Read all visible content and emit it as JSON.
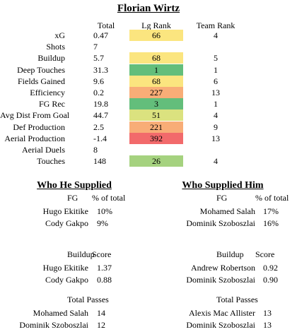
{
  "title": "Florian Wirtz",
  "headers": {
    "total": "Total",
    "lg_rank": "Lg Rank",
    "team_rank": "Team Rank"
  },
  "stats": [
    {
      "label": "xG",
      "total": "0.47",
      "lg_rank": "66",
      "team_rank": "4",
      "color": "#fbe57f"
    },
    {
      "label": "Shots",
      "total": "7",
      "lg_rank": "",
      "team_rank": "",
      "color": ""
    },
    {
      "label": "Buildup",
      "total": "5.7",
      "lg_rank": "68",
      "team_rank": "5",
      "color": "#fbe57f"
    },
    {
      "label": "Deep Touches",
      "total": "31.3",
      "lg_rank": "1",
      "team_rank": "1",
      "color": "#63be7b"
    },
    {
      "label": "Fields Gained",
      "total": "9.6",
      "lg_rank": "68",
      "team_rank": "6",
      "color": "#fbe57f"
    },
    {
      "label": "Efficiency",
      "total": "0.2",
      "lg_rank": "227",
      "team_rank": "13",
      "color": "#f8ad77"
    },
    {
      "label": "FG Rec",
      "total": "19.8",
      "lg_rank": "3",
      "team_rank": "1",
      "color": "#63be7b"
    },
    {
      "label": "Avg Dist From Goal",
      "total": "44.7",
      "lg_rank": "51",
      "team_rank": "4",
      "color": "#dbe27f"
    },
    {
      "label": "Def Production",
      "total": "2.5",
      "lg_rank": "221",
      "team_rank": "9",
      "color": "#f8ad77"
    },
    {
      "label": "Aerial Production",
      "total": "-1.4",
      "lg_rank": "392",
      "team_rank": "13",
      "color": "#f26a6b"
    },
    {
      "label": "Aerial Duels",
      "total": "8",
      "lg_rank": "",
      "team_rank": "",
      "color": ""
    },
    {
      "label": "Touches",
      "total": "148",
      "lg_rank": "26",
      "team_rank": "4",
      "color": "#a5d27f"
    }
  ],
  "left": {
    "title": "Who He Supplied",
    "fg": {
      "header_name": "FG",
      "header_value": "% of total",
      "rows": [
        {
          "name": "Hugo Ekitike",
          "value": "10%"
        },
        {
          "name": "Cody Gakpo",
          "value": "9%"
        }
      ]
    },
    "buildup": {
      "header_name": "Buildup",
      "header_value": "Score",
      "rows": [
        {
          "name": "Hugo Ekitike",
          "value": "1.37"
        },
        {
          "name": "Cody Gakpo",
          "value": "0.88"
        }
      ]
    },
    "passes": {
      "header_name": "Total Passes",
      "header_value": "",
      "rows": [
        {
          "name": "Mohamed Salah",
          "value": "14"
        },
        {
          "name": "Dominik Szoboszlai",
          "value": "12"
        }
      ]
    }
  },
  "right": {
    "title": "Who Supplied Him",
    "fg": {
      "header_name": "FG",
      "header_value": "% of total",
      "rows": [
        {
          "name": "Mohamed Salah",
          "value": "17%"
        },
        {
          "name": "Dominik Szoboszlai",
          "value": "16%"
        }
      ]
    },
    "buildup": {
      "header_name": "Buildup",
      "header_value": "Score",
      "rows": [
        {
          "name": "Andrew Robertson",
          "value": "0.92"
        },
        {
          "name": "Dominik Szoboszlai",
          "value": "0.90"
        }
      ]
    },
    "passes": {
      "header_name": "Total Passes",
      "header_value": "",
      "rows": [
        {
          "name": "Alexis Mac Allister",
          "value": "13"
        },
        {
          "name": "Dominik Szoboszlai",
          "value": "13"
        }
      ]
    }
  }
}
